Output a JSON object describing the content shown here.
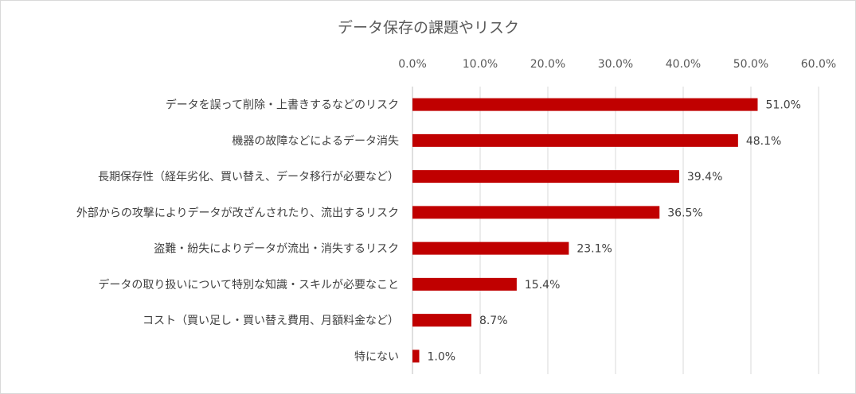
{
  "chart_data": {
    "type": "bar",
    "orientation": "horizontal",
    "title": "データ保存の課題やリスク",
    "categories": [
      "データを誤って削除・上書きするなどのリスク",
      "機器の故障などによるデータ消失",
      "長期保存性（経年劣化、買い替え、データ移行が必要など）",
      "外部からの攻撃によりデータが改ざんされたり、流出するリスク",
      "盗難・紛失によりデータが流出・消失するリスク",
      "データの取り扱いについて特別な知識・スキルが必要なこと",
      "コスト（買い足し・買い替え費用、月額料金など）",
      "特にない"
    ],
    "values": [
      51.0,
      48.1,
      39.4,
      36.5,
      23.1,
      15.4,
      8.7,
      1.0
    ],
    "value_labels": [
      "51.0%",
      "48.1%",
      "39.4%",
      "36.5%",
      "23.1%",
      "15.4%",
      "8.7%",
      "1.0%"
    ],
    "xlim": [
      0,
      60
    ],
    "x_ticks": [
      "0.0%",
      "10.0%",
      "20.0%",
      "30.0%",
      "40.0%",
      "50.0%",
      "60.0%"
    ],
    "x_axis_position": "top",
    "grid": true,
    "legend": "none",
    "bar_color": "#c00000"
  }
}
